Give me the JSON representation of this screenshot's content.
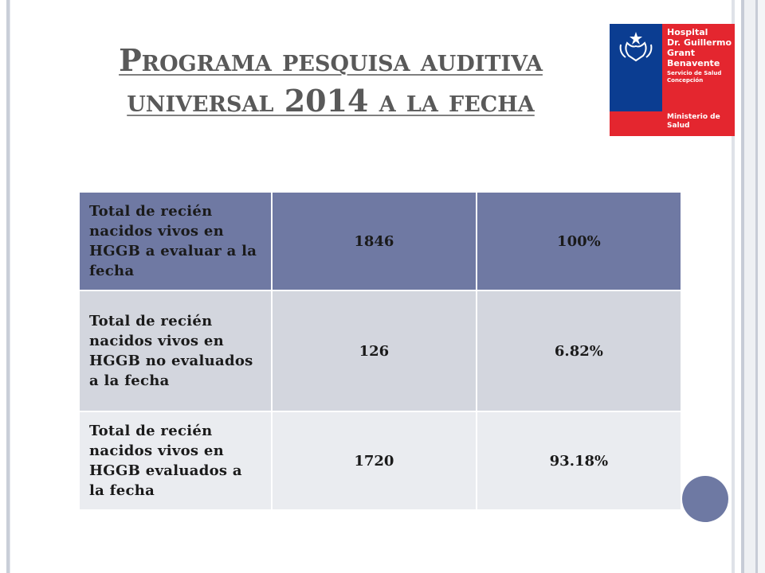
{
  "slide": {
    "title_line1": "Programa pesquisa auditiva",
    "title_line2": "universal 2014 a la fecha"
  },
  "logo": {
    "name_lines": "Hospital\nDr. Guillermo\nGrant\nBenavente",
    "service_lines": "Servicio de Salud\nConcepción",
    "ministry_lines": "Ministerio de\nSalud",
    "colors": {
      "blue": "#0b3d91",
      "red": "#e4262f"
    }
  },
  "table": {
    "rows": [
      {
        "label": "Total de recién nacidos vivos en HGGB a evaluar a la fecha",
        "value": "1846",
        "percent": "100%"
      },
      {
        "label": "Total de recién nacidos vivos en HGGB no evaluados a la fecha",
        "value": "126",
        "percent": "6.82%"
      },
      {
        "label": "Total de recién nacidos vivos en HGGB evaluados a la fecha",
        "value": "1720",
        "percent": "93.18%"
      }
    ],
    "colors": {
      "header_row": "#6f79a3",
      "row_band_1": "#d3d6de",
      "row_band_2": "#eaecf0"
    }
  }
}
